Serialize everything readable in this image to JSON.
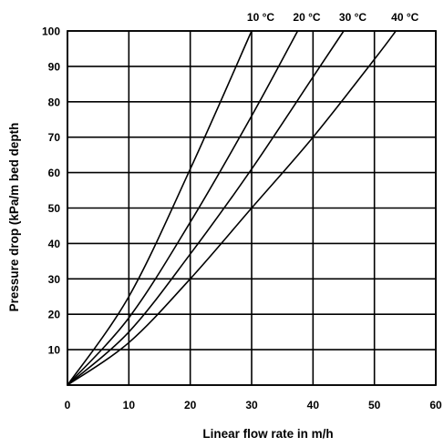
{
  "chart_data": {
    "type": "line",
    "title": "",
    "xlabel": "Linear flow rate in m/h",
    "ylabel": "Pressure drop (kPa/m bed depth",
    "xlim": [
      0,
      60
    ],
    "ylim": [
      0,
      100
    ],
    "xticks": [
      "0",
      "10",
      "20",
      "30",
      "40",
      "50",
      "60"
    ],
    "yticks": [
      "0",
      "10",
      "20",
      "30",
      "40",
      "50",
      "60",
      "70",
      "80",
      "90",
      "100"
    ],
    "grid": true,
    "legend": "series labels above plot, at top end of each curve",
    "series": [
      {
        "name": "10 °C",
        "points": [
          [
            0,
            0
          ],
          [
            10,
            25
          ],
          [
            20,
            61
          ],
          [
            30,
            100
          ]
        ]
      },
      {
        "name": "20 °C",
        "points": [
          [
            0,
            0
          ],
          [
            10,
            19
          ],
          [
            20,
            46
          ],
          [
            30,
            76
          ],
          [
            37.5,
            100
          ]
        ]
      },
      {
        "name": "30 °C",
        "points": [
          [
            0,
            0
          ],
          [
            10,
            15
          ],
          [
            20,
            37
          ],
          [
            30,
            61
          ],
          [
            40,
            87
          ],
          [
            45,
            100
          ]
        ]
      },
      {
        "name": "40 °C",
        "points": [
          [
            0,
            0
          ],
          [
            10,
            12
          ],
          [
            20,
            30
          ],
          [
            30,
            50
          ],
          [
            40,
            70
          ],
          [
            50,
            92
          ],
          [
            53.5,
            100
          ]
        ]
      }
    ]
  }
}
